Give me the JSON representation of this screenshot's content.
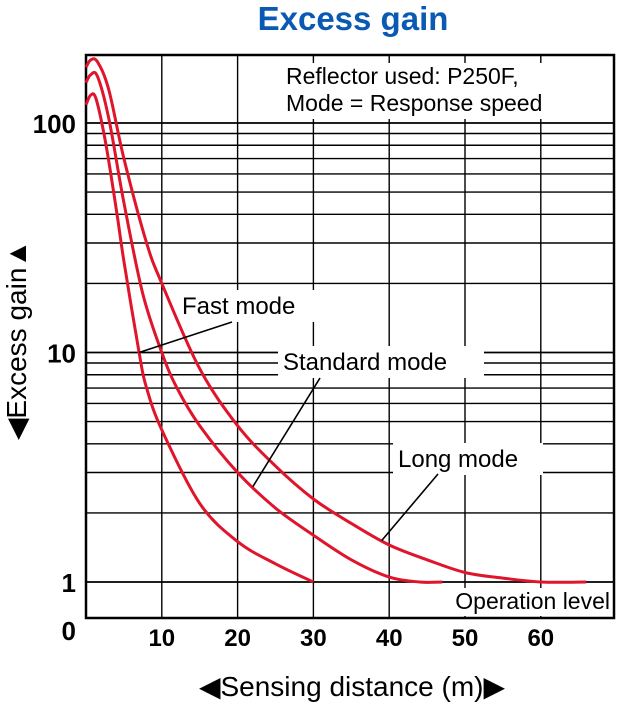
{
  "chart_data": {
    "type": "line",
    "title": "Excess gain",
    "xlabel": "◀Sensing distance (m)▶",
    "ylabel": "◀Excess gain▲",
    "x_ticks": [
      "10",
      "20",
      "30",
      "40",
      "50",
      "60"
    ],
    "x_origin_label": "0",
    "y_ticks": [
      "100",
      "10",
      "1"
    ],
    "xlim": [
      0,
      70
    ],
    "ylim": [
      0.55,
      200
    ],
    "yscale": "log",
    "grid": true,
    "note_lines": [
      "Reflector used: P250F,",
      "Mode = Response speed"
    ],
    "operation_level_label": "Operation level",
    "color": "#e0142a",
    "title_color": "#0a5ab4",
    "series": [
      {
        "name": "Fast mode",
        "points": [
          [
            0,
            120
          ],
          [
            0.6,
            132
          ],
          [
            1.3,
            128
          ],
          [
            2.5,
            85
          ],
          [
            4,
            42
          ],
          [
            5,
            25
          ],
          [
            7,
            10
          ],
          [
            8,
            7
          ],
          [
            10,
            4.6
          ],
          [
            15,
            2.2
          ],
          [
            20,
            1.5
          ],
          [
            25,
            1.2
          ],
          [
            30,
            1.0
          ]
        ]
      },
      {
        "name": "Standard mode",
        "points": [
          [
            0,
            150
          ],
          [
            0.6,
            162
          ],
          [
            1.5,
            160
          ],
          [
            3,
            105
          ],
          [
            5,
            45
          ],
          [
            7.5,
            18
          ],
          [
            10,
            10
          ],
          [
            12,
            7
          ],
          [
            15,
            4.8
          ],
          [
            20,
            3
          ],
          [
            25,
            2.1
          ],
          [
            30,
            1.6
          ],
          [
            35,
            1.25
          ],
          [
            40,
            1.05
          ],
          [
            44,
            1.0
          ],
          [
            47,
            1.0
          ]
        ]
      },
      {
        "name": "Long mode",
        "points": [
          [
            0,
            175
          ],
          [
            0.6,
            188
          ],
          [
            1.5,
            185
          ],
          [
            3,
            140
          ],
          [
            5,
            70
          ],
          [
            8,
            30
          ],
          [
            10,
            20
          ],
          [
            15,
            8.5
          ],
          [
            20,
            4.8
          ],
          [
            25,
            3.2
          ],
          [
            30,
            2.3
          ],
          [
            35,
            1.8
          ],
          [
            40,
            1.45
          ],
          [
            45,
            1.25
          ],
          [
            50,
            1.1
          ],
          [
            55,
            1.04
          ],
          [
            60,
            1.0
          ],
          [
            66,
            1.0
          ]
        ]
      }
    ],
    "annotations": [
      {
        "text": "Fast mode",
        "series": "Fast mode",
        "at_x": 7
      },
      {
        "text": "Standard mode",
        "series": "Standard mode",
        "at_x": 22
      },
      {
        "text": "Long mode",
        "series": "Long mode",
        "at_x": 39
      }
    ]
  }
}
